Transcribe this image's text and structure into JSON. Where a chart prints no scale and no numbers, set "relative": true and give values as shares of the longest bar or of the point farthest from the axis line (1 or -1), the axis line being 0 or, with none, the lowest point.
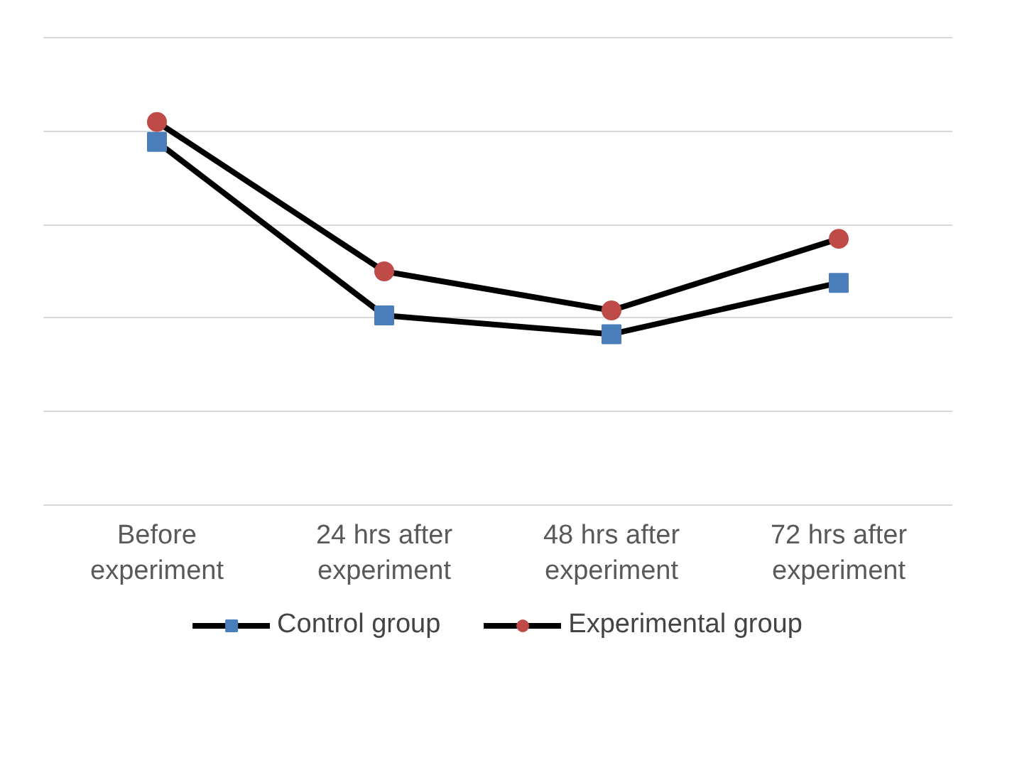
{
  "chart_data": {
    "type": "line",
    "relative": true,
    "categories": [
      "Before experiment",
      "24 hrs after experiment",
      "48 hrs after experiment",
      "72 hrs after experiment"
    ],
    "series": [
      {
        "name": "Control group",
        "color": "#000000",
        "colors": [
          "#4a7ebb",
          "#4a7ebb",
          "#4a7ebb",
          "#4a7ebb"
        ],
        "marker": "square",
        "values": [
          0.948,
          0.495,
          0.446,
          0.58
        ]
      },
      {
        "name": "Experimental group",
        "color": "#000000",
        "colors": [
          "#be4b48",
          "#be4b48",
          "#be4b48",
          "#be4b48"
        ],
        "marker": "circle",
        "values": [
          1,
          0.61,
          0.508,
          0.695
        ]
      }
    ],
    "grid": "y",
    "legend": "bottom",
    "line_style": "solid"
  }
}
